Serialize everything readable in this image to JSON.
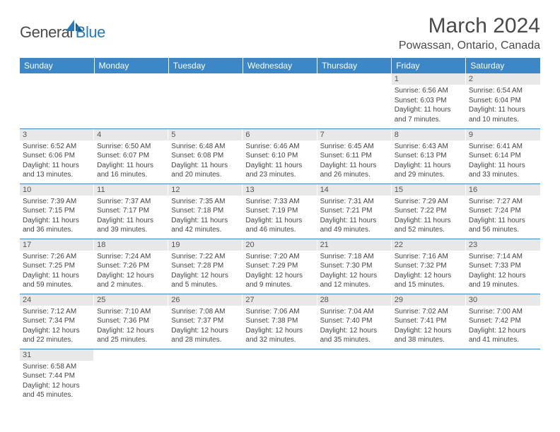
{
  "logo": {
    "general": "General",
    "blue": "Blue"
  },
  "title": "March 2024",
  "location": "Powassan, Ontario, Canada",
  "day_headers": [
    "Sunday",
    "Monday",
    "Tuesday",
    "Wednesday",
    "Thursday",
    "Friday",
    "Saturday"
  ],
  "colors": {
    "header_bg": "#3b87c8",
    "header_text": "#ffffff",
    "daynum_bg": "#e8e8e8",
    "border": "#3b87c8",
    "logo_blue": "#2a7ab8",
    "text": "#444444"
  },
  "weeks": [
    [
      null,
      null,
      null,
      null,
      null,
      {
        "n": "1",
        "sr": "Sunrise: 6:56 AM",
        "ss": "Sunset: 6:03 PM",
        "dl1": "Daylight: 11 hours",
        "dl2": "and 7 minutes."
      },
      {
        "n": "2",
        "sr": "Sunrise: 6:54 AM",
        "ss": "Sunset: 6:04 PM",
        "dl1": "Daylight: 11 hours",
        "dl2": "and 10 minutes."
      }
    ],
    [
      {
        "n": "3",
        "sr": "Sunrise: 6:52 AM",
        "ss": "Sunset: 6:06 PM",
        "dl1": "Daylight: 11 hours",
        "dl2": "and 13 minutes."
      },
      {
        "n": "4",
        "sr": "Sunrise: 6:50 AM",
        "ss": "Sunset: 6:07 PM",
        "dl1": "Daylight: 11 hours",
        "dl2": "and 16 minutes."
      },
      {
        "n": "5",
        "sr": "Sunrise: 6:48 AM",
        "ss": "Sunset: 6:08 PM",
        "dl1": "Daylight: 11 hours",
        "dl2": "and 20 minutes."
      },
      {
        "n": "6",
        "sr": "Sunrise: 6:46 AM",
        "ss": "Sunset: 6:10 PM",
        "dl1": "Daylight: 11 hours",
        "dl2": "and 23 minutes."
      },
      {
        "n": "7",
        "sr": "Sunrise: 6:45 AM",
        "ss": "Sunset: 6:11 PM",
        "dl1": "Daylight: 11 hours",
        "dl2": "and 26 minutes."
      },
      {
        "n": "8",
        "sr": "Sunrise: 6:43 AM",
        "ss": "Sunset: 6:13 PM",
        "dl1": "Daylight: 11 hours",
        "dl2": "and 29 minutes."
      },
      {
        "n": "9",
        "sr": "Sunrise: 6:41 AM",
        "ss": "Sunset: 6:14 PM",
        "dl1": "Daylight: 11 hours",
        "dl2": "and 33 minutes."
      }
    ],
    [
      {
        "n": "10",
        "sr": "Sunrise: 7:39 AM",
        "ss": "Sunset: 7:15 PM",
        "dl1": "Daylight: 11 hours",
        "dl2": "and 36 minutes."
      },
      {
        "n": "11",
        "sr": "Sunrise: 7:37 AM",
        "ss": "Sunset: 7:17 PM",
        "dl1": "Daylight: 11 hours",
        "dl2": "and 39 minutes."
      },
      {
        "n": "12",
        "sr": "Sunrise: 7:35 AM",
        "ss": "Sunset: 7:18 PM",
        "dl1": "Daylight: 11 hours",
        "dl2": "and 42 minutes."
      },
      {
        "n": "13",
        "sr": "Sunrise: 7:33 AM",
        "ss": "Sunset: 7:19 PM",
        "dl1": "Daylight: 11 hours",
        "dl2": "and 46 minutes."
      },
      {
        "n": "14",
        "sr": "Sunrise: 7:31 AM",
        "ss": "Sunset: 7:21 PM",
        "dl1": "Daylight: 11 hours",
        "dl2": "and 49 minutes."
      },
      {
        "n": "15",
        "sr": "Sunrise: 7:29 AM",
        "ss": "Sunset: 7:22 PM",
        "dl1": "Daylight: 11 hours",
        "dl2": "and 52 minutes."
      },
      {
        "n": "16",
        "sr": "Sunrise: 7:27 AM",
        "ss": "Sunset: 7:24 PM",
        "dl1": "Daylight: 11 hours",
        "dl2": "and 56 minutes."
      }
    ],
    [
      {
        "n": "17",
        "sr": "Sunrise: 7:26 AM",
        "ss": "Sunset: 7:25 PM",
        "dl1": "Daylight: 11 hours",
        "dl2": "and 59 minutes."
      },
      {
        "n": "18",
        "sr": "Sunrise: 7:24 AM",
        "ss": "Sunset: 7:26 PM",
        "dl1": "Daylight: 12 hours",
        "dl2": "and 2 minutes."
      },
      {
        "n": "19",
        "sr": "Sunrise: 7:22 AM",
        "ss": "Sunset: 7:28 PM",
        "dl1": "Daylight: 12 hours",
        "dl2": "and 5 minutes."
      },
      {
        "n": "20",
        "sr": "Sunrise: 7:20 AM",
        "ss": "Sunset: 7:29 PM",
        "dl1": "Daylight: 12 hours",
        "dl2": "and 9 minutes."
      },
      {
        "n": "21",
        "sr": "Sunrise: 7:18 AM",
        "ss": "Sunset: 7:30 PM",
        "dl1": "Daylight: 12 hours",
        "dl2": "and 12 minutes."
      },
      {
        "n": "22",
        "sr": "Sunrise: 7:16 AM",
        "ss": "Sunset: 7:32 PM",
        "dl1": "Daylight: 12 hours",
        "dl2": "and 15 minutes."
      },
      {
        "n": "23",
        "sr": "Sunrise: 7:14 AM",
        "ss": "Sunset: 7:33 PM",
        "dl1": "Daylight: 12 hours",
        "dl2": "and 19 minutes."
      }
    ],
    [
      {
        "n": "24",
        "sr": "Sunrise: 7:12 AM",
        "ss": "Sunset: 7:34 PM",
        "dl1": "Daylight: 12 hours",
        "dl2": "and 22 minutes."
      },
      {
        "n": "25",
        "sr": "Sunrise: 7:10 AM",
        "ss": "Sunset: 7:36 PM",
        "dl1": "Daylight: 12 hours",
        "dl2": "and 25 minutes."
      },
      {
        "n": "26",
        "sr": "Sunrise: 7:08 AM",
        "ss": "Sunset: 7:37 PM",
        "dl1": "Daylight: 12 hours",
        "dl2": "and 28 minutes."
      },
      {
        "n": "27",
        "sr": "Sunrise: 7:06 AM",
        "ss": "Sunset: 7:38 PM",
        "dl1": "Daylight: 12 hours",
        "dl2": "and 32 minutes."
      },
      {
        "n": "28",
        "sr": "Sunrise: 7:04 AM",
        "ss": "Sunset: 7:40 PM",
        "dl1": "Daylight: 12 hours",
        "dl2": "and 35 minutes."
      },
      {
        "n": "29",
        "sr": "Sunrise: 7:02 AM",
        "ss": "Sunset: 7:41 PM",
        "dl1": "Daylight: 12 hours",
        "dl2": "and 38 minutes."
      },
      {
        "n": "30",
        "sr": "Sunrise: 7:00 AM",
        "ss": "Sunset: 7:42 PM",
        "dl1": "Daylight: 12 hours",
        "dl2": "and 41 minutes."
      }
    ],
    [
      {
        "n": "31",
        "sr": "Sunrise: 6:58 AM",
        "ss": "Sunset: 7:44 PM",
        "dl1": "Daylight: 12 hours",
        "dl2": "and 45 minutes."
      },
      null,
      null,
      null,
      null,
      null,
      null
    ]
  ]
}
